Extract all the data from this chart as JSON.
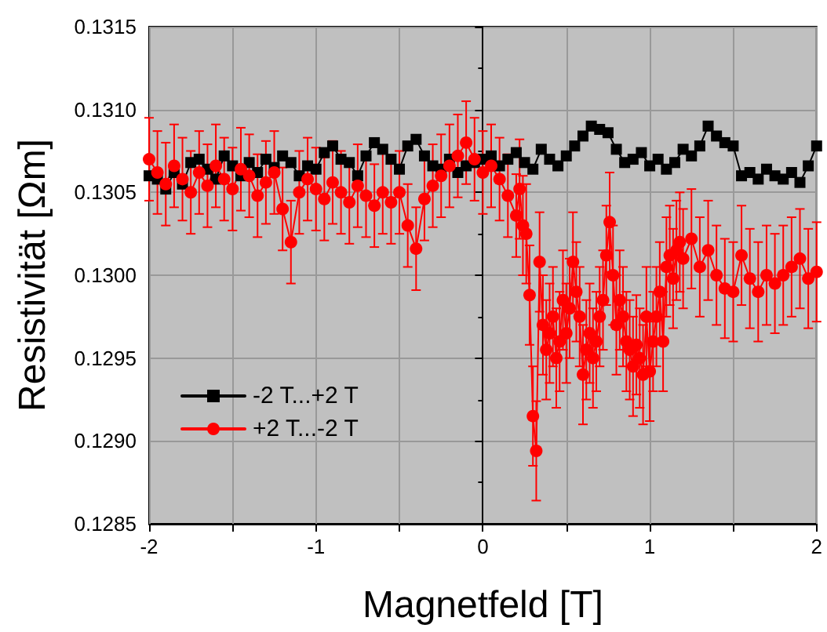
{
  "chart_data": {
    "type": "line",
    "xlabel": "Magnetfeld [T]",
    "ylabel": "Resistivität [Ωm]",
    "xlim": [
      -2,
      2
    ],
    "xticks": [
      -2,
      {
        "value": -1.5,
        "label": null
      },
      -1,
      {
        "value": -0.5,
        "label": null
      },
      0,
      {
        "value": 0.5,
        "label": null
      },
      1,
      {
        "value": 1.5,
        "label": null
      },
      2
    ],
    "ylim": [
      0.1285,
      0.1315
    ],
    "yticks": [
      0.1285,
      {
        "value": 0.129,
        "label": "0.1290"
      },
      0.1295,
      {
        "value": 0.13,
        "label": "0.1300"
      },
      0.1305,
      {
        "value": 0.131,
        "label": "0.1310"
      },
      0.1315
    ],
    "grid": true,
    "legend": "bottom left",
    "series": [
      {
        "name": "-2 T...+2 T",
        "color": "#000000",
        "marker": "square",
        "x": [
          -2,
          -1.95,
          -1.9,
          -1.85,
          -1.8,
          -1.75,
          -1.7,
          -1.65,
          -1.6,
          -1.55,
          -1.5,
          -1.45,
          -1.4,
          -1.35,
          -1.3,
          -1.25,
          -1.2,
          -1.15,
          -1.1,
          -1.05,
          -1,
          -0.95,
          -0.9,
          -0.85,
          -0.8,
          -0.75,
          -0.7,
          -0.65,
          -0.6,
          -0.55,
          -0.5,
          -0.45,
          -0.4,
          -0.35,
          -0.3,
          -0.25,
          -0.2,
          -0.15,
          -0.1,
          -0.05,
          0,
          0.05,
          0.1,
          0.15,
          0.2,
          0.25,
          0.3,
          0.35,
          0.4,
          0.45,
          0.5,
          0.55,
          0.6,
          0.65,
          0.7,
          0.75,
          0.8,
          0.85,
          0.9,
          0.95,
          1,
          1.05,
          1.1,
          1.15,
          1.2,
          1.25,
          1.3,
          1.35,
          1.4,
          1.45,
          1.5,
          1.55,
          1.6,
          1.65,
          1.7,
          1.75,
          1.8,
          1.85,
          1.9,
          1.95,
          2
        ],
        "values": [
          0.1306,
          0.13058,
          0.13052,
          0.13062,
          0.13055,
          0.13068,
          0.1307,
          0.13064,
          0.13058,
          0.13072,
          0.13066,
          0.1306,
          0.13068,
          0.13062,
          0.1307,
          0.13065,
          0.13072,
          0.13068,
          0.1306,
          0.13066,
          0.13064,
          0.13074,
          0.13078,
          0.1307,
          0.13068,
          0.1306,
          0.13072,
          0.1308,
          0.13076,
          0.1307,
          0.13064,
          0.13078,
          0.13082,
          0.13072,
          0.13066,
          0.13064,
          0.1307,
          0.13062,
          0.13066,
          0.13068,
          0.1307,
          0.13072,
          0.13066,
          0.1307,
          0.13074,
          0.13068,
          0.13064,
          0.13076,
          0.1307,
          0.13066,
          0.13072,
          0.13078,
          0.13084,
          0.1309,
          0.13088,
          0.13086,
          0.13076,
          0.13068,
          0.1307,
          0.13074,
          0.13066,
          0.1307,
          0.13064,
          0.13068,
          0.13076,
          0.13072,
          0.13078,
          0.1309,
          0.13084,
          0.1308,
          0.13078,
          0.1306,
          0.13062,
          0.13058,
          0.13064,
          0.1306,
          0.13058,
          0.13062,
          0.13056,
          0.13066,
          0.13078
        ]
      },
      {
        "name": "+2 T...-2 T",
        "color": "#ff0000",
        "marker": "circle",
        "x": [
          -2,
          -1.95,
          -1.9,
          -1.85,
          -1.8,
          -1.75,
          -1.7,
          -1.65,
          -1.6,
          -1.55,
          -1.5,
          -1.45,
          -1.4,
          -1.35,
          -1.3,
          -1.25,
          -1.2,
          -1.15,
          -1.1,
          -1.05,
          -1,
          -0.95,
          -0.9,
          -0.85,
          -0.8,
          -0.75,
          -0.7,
          -0.65,
          -0.6,
          -0.55,
          -0.5,
          -0.45,
          -0.4,
          -0.35,
          -0.3,
          -0.25,
          -0.2,
          -0.15,
          -0.1,
          -0.05,
          0,
          0.05,
          0.1,
          0.15,
          0.2,
          0.22,
          0.24,
          0.26,
          0.28,
          0.3,
          0.32,
          0.34,
          0.36,
          0.38,
          0.4,
          0.42,
          0.44,
          0.46,
          0.48,
          0.5,
          0.52,
          0.54,
          0.56,
          0.58,
          0.6,
          0.62,
          0.64,
          0.66,
          0.68,
          0.7,
          0.72,
          0.74,
          0.76,
          0.78,
          0.8,
          0.82,
          0.84,
          0.86,
          0.88,
          0.9,
          0.92,
          0.94,
          0.96,
          0.98,
          1,
          1.02,
          1.04,
          1.06,
          1.08,
          1.1,
          1.12,
          1.14,
          1.16,
          1.18,
          1.2,
          1.25,
          1.3,
          1.35,
          1.4,
          1.45,
          1.5,
          1.55,
          1.6,
          1.65,
          1.7,
          1.75,
          1.8,
          1.85,
          1.9,
          1.95,
          2
        ],
        "values": [
          0.1307,
          0.13062,
          0.13055,
          0.13066,
          0.13058,
          0.1305,
          0.13062,
          0.13054,
          0.13066,
          0.13058,
          0.13052,
          0.13064,
          0.1306,
          0.13048,
          0.13056,
          0.13062,
          0.1304,
          0.1302,
          0.1305,
          0.13058,
          0.13052,
          0.13046,
          0.13056,
          0.1305,
          0.13044,
          0.13054,
          0.13048,
          0.13042,
          0.1305,
          0.13044,
          0.1305,
          0.1303,
          0.13016,
          0.13046,
          0.13054,
          0.1306,
          0.13066,
          0.13072,
          0.1308,
          0.1307,
          0.13062,
          0.13066,
          0.13058,
          0.13048,
          0.13036,
          0.13052,
          0.1303,
          0.13025,
          0.12988,
          0.12915,
          0.12894,
          0.13008,
          0.1297,
          0.12955,
          0.12965,
          0.12975,
          0.1295,
          0.1296,
          0.12985,
          0.12965,
          0.1298,
          0.13008,
          0.1299,
          0.12975,
          0.1294,
          0.12955,
          0.12965,
          0.1295,
          0.1296,
          0.12975,
          0.12985,
          0.13012,
          0.13032,
          0.13,
          0.1297,
          0.12985,
          0.12975,
          0.1296,
          0.12955,
          0.12945,
          0.12958,
          0.1295,
          0.1294,
          0.12975,
          0.12942,
          0.1296,
          0.12975,
          0.1299,
          0.1296,
          0.13005,
          0.13012,
          0.12998,
          0.13015,
          0.1302,
          0.1301,
          0.13022,
          0.13005,
          0.13015,
          0.13,
          0.12992,
          0.1299,
          0.13012,
          0.12998,
          0.1299,
          0.13,
          0.12995,
          0.13,
          0.13005,
          0.1301,
          0.12998,
          0.13002
        ],
        "errors": [
          0.00025,
          0.00025,
          0.00025,
          0.00025,
          0.00025,
          0.00025,
          0.00025,
          0.00025,
          0.00025,
          0.00025,
          0.00025,
          0.00025,
          0.00025,
          0.00025,
          0.00025,
          0.00025,
          0.00025,
          0.00025,
          0.00025,
          0.00025,
          0.00025,
          0.00025,
          0.00025,
          0.00025,
          0.00025,
          0.00025,
          0.00025,
          0.00025,
          0.00025,
          0.00025,
          0.00025,
          0.00025,
          0.00025,
          0.00025,
          0.00025,
          0.00025,
          0.00025,
          0.00025,
          0.00025,
          0.00025,
          0.00025,
          0.00025,
          0.00025,
          0.00025,
          0.00025,
          0.0003,
          0.0003,
          0.0003,
          0.0003,
          0.0003,
          0.0003,
          0.0003,
          0.0003,
          0.0003,
          0.0003,
          0.0003,
          0.0003,
          0.0003,
          0.0003,
          0.0003,
          0.0003,
          0.0003,
          0.0003,
          0.0003,
          0.0003,
          0.0003,
          0.0003,
          0.0003,
          0.0003,
          0.0003,
          0.0003,
          0.0003,
          0.0003,
          0.0003,
          0.0003,
          0.0003,
          0.0003,
          0.0003,
          0.0003,
          0.0003,
          0.0003,
          0.0003,
          0.0003,
          0.0003,
          0.0003,
          0.0003,
          0.0003,
          0.0003,
          0.0003,
          0.0003,
          0.0003,
          0.0003,
          0.0003,
          0.0003,
          0.0003,
          0.0003,
          0.0003,
          0.0003,
          0.0003,
          0.0003,
          0.0003,
          0.0003,
          0.0003,
          0.0003,
          0.0003,
          0.0003,
          0.0003,
          0.0003,
          0.0003,
          0.0003,
          0.0003
        ]
      }
    ]
  }
}
